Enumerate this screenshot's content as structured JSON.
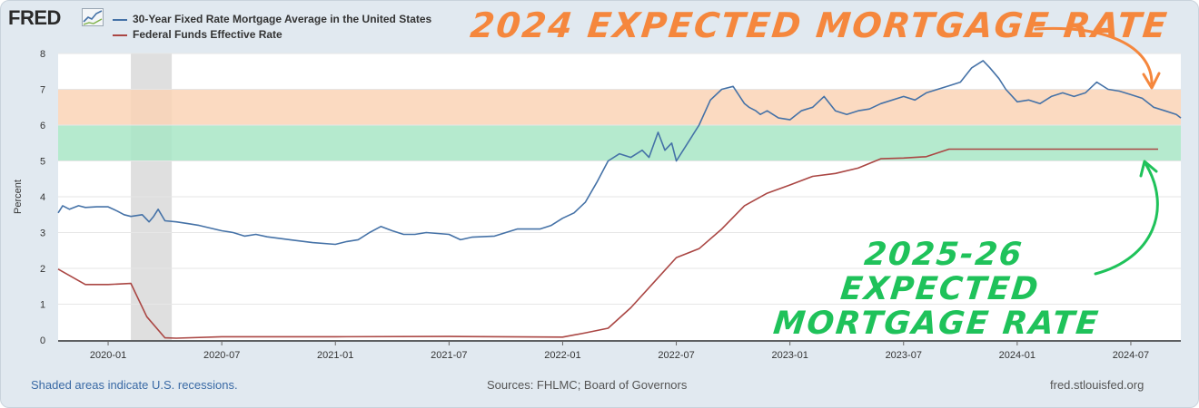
{
  "header": {
    "logo_text": "FRED"
  },
  "chart_data": {
    "type": "line",
    "ylabel": "Percent",
    "ylim": [
      0,
      8
    ],
    "yticks": [
      "0",
      "1",
      "2",
      "3",
      "4",
      "5",
      "6",
      "7",
      "8"
    ],
    "xlim": [
      2019.78,
      2024.72
    ],
    "xticks": [
      {
        "label": "2020-01",
        "t": 2020.0
      },
      {
        "label": "2020-07",
        "t": 2020.5
      },
      {
        "label": "2021-01",
        "t": 2021.0
      },
      {
        "label": "2021-07",
        "t": 2021.5
      },
      {
        "label": "2022-01",
        "t": 2022.0
      },
      {
        "label": "2022-07",
        "t": 2022.5
      },
      {
        "label": "2023-01",
        "t": 2023.0
      },
      {
        "label": "2023-07",
        "t": 2023.5
      },
      {
        "label": "2024-01",
        "t": 2024.0
      },
      {
        "label": "2024-07",
        "t": 2024.5
      }
    ],
    "recession": {
      "start": 2020.1,
      "end": 2020.28
    },
    "bands": [
      {
        "name": "2024 expected range",
        "ymin": 6,
        "ymax": 7,
        "color": "#fad4b6"
      },
      {
        "name": "2025-26 expected range",
        "ymin": 5,
        "ymax": 6,
        "color": "#a8e6c6"
      }
    ],
    "series": [
      {
        "name": "30-Year Fixed Rate Mortgage Average in the United States",
        "color": "#4572a7",
        "x": [
          2019.78,
          2019.8,
          2019.83,
          2019.87,
          2019.9,
          2019.95,
          2020.0,
          2020.04,
          2020.07,
          2020.1,
          2020.15,
          2020.18,
          2020.2,
          2020.22,
          2020.25,
          2020.3,
          2020.35,
          2020.4,
          2020.5,
          2020.55,
          2020.6,
          2020.65,
          2020.7,
          2020.8,
          2020.9,
          2021.0,
          2021.05,
          2021.1,
          2021.15,
          2021.2,
          2021.25,
          2021.3,
          2021.35,
          2021.4,
          2021.5,
          2021.55,
          2021.6,
          2021.7,
          2021.8,
          2021.9,
          2021.95,
          2022.0,
          2022.05,
          2022.1,
          2022.15,
          2022.2,
          2022.25,
          2022.3,
          2022.35,
          2022.38,
          2022.42,
          2022.45,
          2022.48,
          2022.5,
          2022.55,
          2022.6,
          2022.65,
          2022.7,
          2022.75,
          2022.8,
          2022.82,
          2022.85,
          2022.87,
          2022.9,
          2022.95,
          2023.0,
          2023.05,
          2023.1,
          2023.15,
          2023.2,
          2023.25,
          2023.3,
          2023.35,
          2023.4,
          2023.5,
          2023.55,
          2023.6,
          2023.7,
          2023.75,
          2023.8,
          2023.85,
          2023.88,
          2023.92,
          2023.95,
          2024.0,
          2024.05,
          2024.1,
          2024.15,
          2024.2,
          2024.25,
          2024.3,
          2024.35,
          2024.4,
          2024.45,
          2024.5,
          2024.55,
          2024.6,
          2024.65,
          2024.7,
          2024.72
        ],
        "y": [
          3.55,
          3.75,
          3.65,
          3.75,
          3.7,
          3.72,
          3.72,
          3.6,
          3.5,
          3.45,
          3.5,
          3.3,
          3.45,
          3.65,
          3.33,
          3.3,
          3.25,
          3.2,
          3.05,
          3.0,
          2.9,
          2.95,
          2.88,
          2.8,
          2.72,
          2.67,
          2.75,
          2.8,
          3.0,
          3.17,
          3.05,
          2.95,
          2.95,
          3.0,
          2.95,
          2.8,
          2.87,
          2.9,
          3.1,
          3.1,
          3.2,
          3.4,
          3.55,
          3.85,
          4.4,
          5.0,
          5.2,
          5.1,
          5.3,
          5.1,
          5.8,
          5.3,
          5.5,
          5.0,
          5.5,
          6.0,
          6.7,
          7.0,
          7.08,
          6.6,
          6.5,
          6.4,
          6.3,
          6.4,
          6.2,
          6.15,
          6.4,
          6.5,
          6.8,
          6.4,
          6.3,
          6.4,
          6.45,
          6.6,
          6.8,
          6.7,
          6.9,
          7.1,
          7.2,
          7.6,
          7.8,
          7.6,
          7.3,
          7.0,
          6.65,
          6.7,
          6.6,
          6.8,
          6.9,
          6.8,
          6.9,
          7.2,
          7.0,
          6.95,
          6.85,
          6.75,
          6.5,
          6.4,
          6.3,
          6.2
        ]
      },
      {
        "name": "Federal Funds Effective Rate",
        "color": "#aa4643",
        "x": [
          2019.78,
          2019.9,
          2020.0,
          2020.1,
          2020.17,
          2020.25,
          2020.3,
          2020.5,
          2021.0,
          2021.5,
          2022.0,
          2022.1,
          2022.2,
          2022.3,
          2022.4,
          2022.5,
          2022.6,
          2022.7,
          2022.8,
          2022.9,
          2023.0,
          2023.1,
          2023.2,
          2023.3,
          2023.4,
          2023.5,
          2023.6,
          2023.7,
          2023.8,
          2023.9,
          2024.0,
          2024.2,
          2024.4,
          2024.6,
          2024.62
        ],
        "y": [
          1.98,
          1.55,
          1.55,
          1.58,
          0.65,
          0.06,
          0.05,
          0.09,
          0.09,
          0.1,
          0.08,
          0.2,
          0.33,
          0.9,
          1.6,
          2.3,
          2.55,
          3.1,
          3.75,
          4.1,
          4.33,
          4.57,
          4.65,
          4.8,
          5.06,
          5.08,
          5.12,
          5.33,
          5.33,
          5.33,
          5.33,
          5.33,
          5.33,
          5.33,
          5.33
        ]
      }
    ]
  },
  "legend": [
    {
      "label": "30-Year Fixed Rate Mortgage Average in the United States",
      "color": "#4572a7"
    },
    {
      "label": "Federal Funds Effective Rate",
      "color": "#aa4643"
    }
  ],
  "annotations": {
    "expected_2024": "2024 Expected Mortgage Rate",
    "expected_2025_26": "2025-26 Expected Mortgage Rate",
    "orange": "#f5873d",
    "green": "#1fc25a"
  },
  "footer": {
    "recession_note": "Shaded areas indicate U.S. recessions.",
    "sources": "Sources: FHLMC; Board of Governors",
    "site": "fred.stlouisfed.org"
  }
}
